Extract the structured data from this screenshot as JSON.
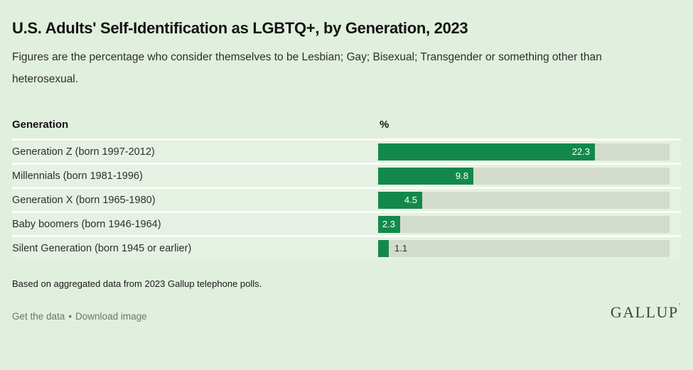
{
  "header": {
    "title": "U.S. Adults' Self-Identification as LGBTQ+, by Generation, 2023",
    "subtitle": "Figures are the percentage who consider themselves to be Lesbian; Gay; Bisexual; Transgender or something other than heterosexual."
  },
  "chart_data": {
    "type": "bar",
    "orientation": "horizontal",
    "column_headers": [
      "Generation",
      "%"
    ],
    "categories": [
      "Generation Z (born 1997-2012)",
      "Millennials (born 1981-1996)",
      "Generation X (born 1965-1980)",
      "Baby boomers (born 1946-1964)",
      "Silent Generation (born 1945 or earlier)"
    ],
    "values": [
      22.3,
      9.8,
      4.5,
      2.3,
      1.1
    ],
    "value_labels": [
      "22.3",
      "9.8",
      "4.5",
      "2.3",
      "1.1"
    ],
    "xlim": [
      0,
      30
    ],
    "grid": false,
    "legend": false,
    "bar_color": "#12894a",
    "track_color": "#d3dccc",
    "value_label_inside_color": "#ffffff",
    "value_label_outside_color": "#2e2e2e"
  },
  "footer": {
    "note": "Based on aggregated data from 2023 Gallup telephone polls.",
    "get_data_link": "Get the data",
    "link_separator": "•",
    "download_link": "Download image",
    "logo_text": "GALLUP",
    "logo_mark": "ʼ"
  },
  "colors": {
    "background": "#e1efde",
    "row_background": "#e5f1e2",
    "divider": "#fafdf8"
  }
}
